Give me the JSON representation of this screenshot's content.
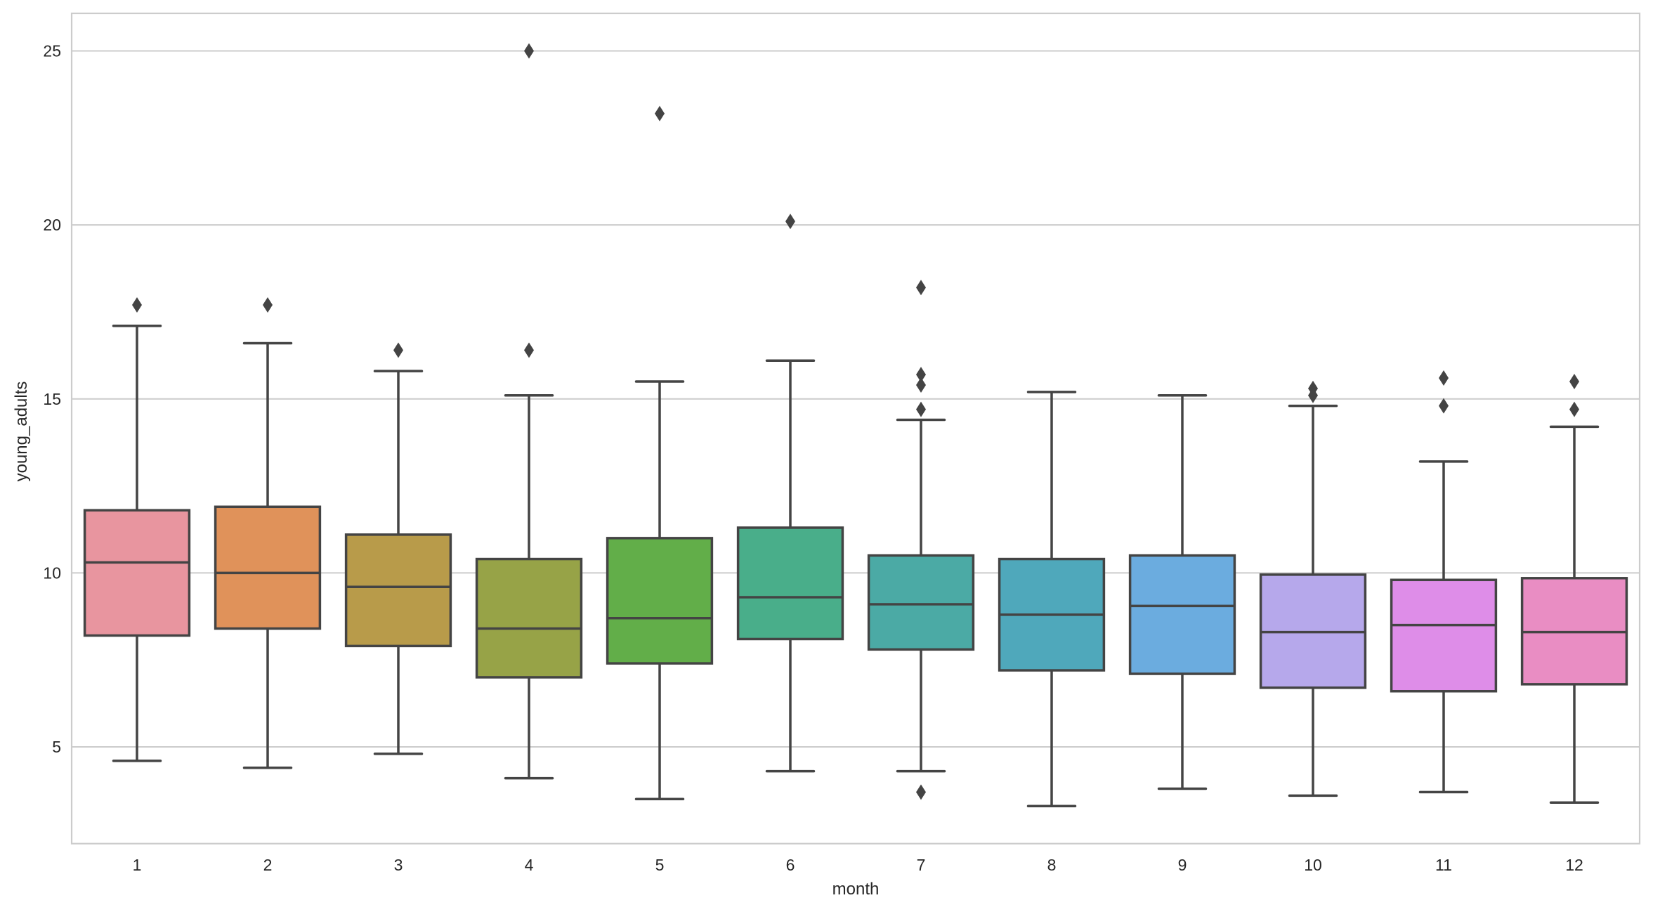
{
  "chart_data": {
    "type": "box",
    "title": "",
    "xlabel": "month",
    "ylabel": "young_adults",
    "ylim": [
      2.22,
      26.08
    ],
    "yticks": [
      5,
      10,
      15,
      20,
      25
    ],
    "ytick_labels": [
      "5",
      "10",
      "15",
      "20",
      "25"
    ],
    "grid": true,
    "categories": [
      "1",
      "2",
      "3",
      "4",
      "5",
      "6",
      "7",
      "8",
      "9",
      "10",
      "11",
      "12"
    ],
    "colors": [
      "#E8959F",
      "#E0925A",
      "#B89B4A",
      "#97A347",
      "#62AE49",
      "#49AE8A",
      "#4BAAA5",
      "#4FA8BB",
      "#6BACDF",
      "#B6A8EB",
      "#DE8DE8",
      "#E98DC3"
    ],
    "line_color": "#444444",
    "grid_color": "#CCCCCC",
    "boxes": [
      {
        "month": "1",
        "whisker_low": 4.6,
        "q1": 8.2,
        "median": 10.3,
        "q3": 11.8,
        "whisker_high": 17.1,
        "outliers": [
          17.7
        ]
      },
      {
        "month": "2",
        "whisker_low": 4.4,
        "q1": 8.4,
        "median": 10.0,
        "q3": 11.9,
        "whisker_high": 16.6,
        "outliers": [
          17.7
        ]
      },
      {
        "month": "3",
        "whisker_low": 4.8,
        "q1": 7.9,
        "median": 9.6,
        "q3": 11.1,
        "whisker_high": 15.8,
        "outliers": [
          16.4
        ]
      },
      {
        "month": "4",
        "whisker_low": 4.1,
        "q1": 7.0,
        "median": 8.4,
        "q3": 10.4,
        "whisker_high": 15.1,
        "outliers": [
          25.0,
          16.4
        ]
      },
      {
        "month": "5",
        "whisker_low": 3.5,
        "q1": 7.4,
        "median": 8.7,
        "q3": 11.0,
        "whisker_high": 15.5,
        "outliers": [
          23.2
        ]
      },
      {
        "month": "6",
        "whisker_low": 4.3,
        "q1": 8.1,
        "median": 9.3,
        "q3": 11.3,
        "whisker_high": 16.1,
        "outliers": [
          20.1
        ]
      },
      {
        "month": "7",
        "whisker_low": 4.3,
        "q1": 7.8,
        "median": 9.1,
        "q3": 10.5,
        "whisker_high": 14.4,
        "outliers": [
          18.2,
          15.7,
          15.4,
          14.7,
          3.7
        ]
      },
      {
        "month": "8",
        "whisker_low": 3.3,
        "q1": 7.2,
        "median": 8.8,
        "q3": 10.4,
        "whisker_high": 15.2,
        "outliers": []
      },
      {
        "month": "9",
        "whisker_low": 3.8,
        "q1": 7.1,
        "median": 9.05,
        "q3": 10.5,
        "whisker_high": 15.1,
        "outliers": []
      },
      {
        "month": "10",
        "whisker_low": 3.6,
        "q1": 6.7,
        "median": 8.3,
        "q3": 9.95,
        "whisker_high": 14.8,
        "outliers": [
          15.3,
          15.1
        ]
      },
      {
        "month": "11",
        "whisker_low": 3.7,
        "q1": 6.6,
        "median": 8.5,
        "q3": 9.8,
        "whisker_high": 13.2,
        "outliers": [
          15.6,
          14.8
        ]
      },
      {
        "month": "12",
        "whisker_low": 3.4,
        "q1": 6.8,
        "median": 8.3,
        "q3": 9.85,
        "whisker_high": 14.2,
        "outliers": [
          15.5,
          14.7
        ]
      }
    ]
  }
}
